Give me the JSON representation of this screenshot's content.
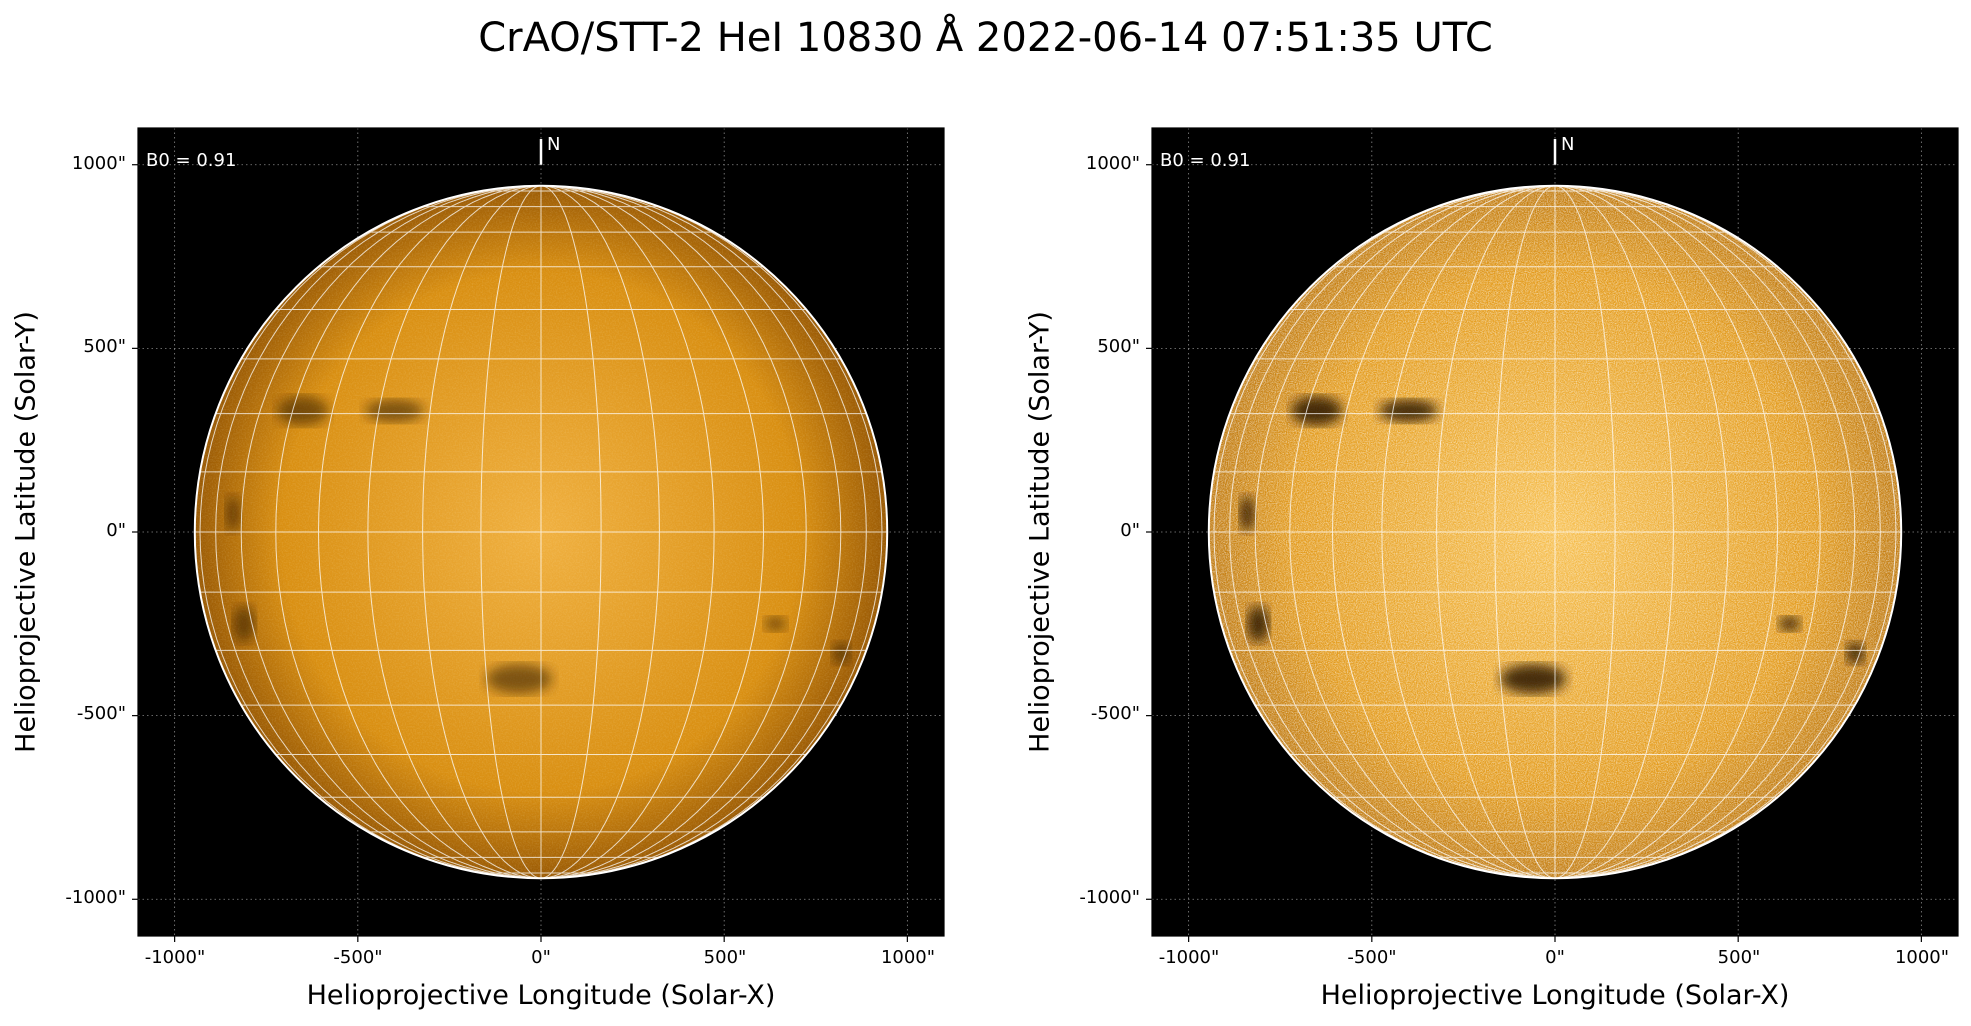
{
  "title": "CrAO/STT-2 HeI 10830 Å 2022-06-14 07:51:35 UTC",
  "colors": {
    "background": "#ffffff",
    "frame_bg": "#000000",
    "disk_center": "#f0b040",
    "disk_mid": "#d98f12",
    "disk_limb": "#9a5a05",
    "grid": "#ffffff",
    "feature_dark": "#2a1502"
  },
  "coordinate_frame": {
    "x_range": [
      -1100,
      1100
    ],
    "y_range": [
      -1100,
      1100
    ],
    "solar_radius_arcsec": 945,
    "grid_spacing_deg": 10
  },
  "panels": [
    {
      "id": "left",
      "annotation": "B0 = 0.91",
      "north_label": "N",
      "xlabel": "Helioprojective Longitude (Solar-X)",
      "ylabel": "Helioprojective Latitude (Solar-Y)",
      "xticks": [
        "-1000\"",
        "-500\"",
        "0\"",
        "500\"",
        "1000\""
      ],
      "yticks": [
        "1000\"",
        "500\"",
        "0\"",
        "-500\"",
        "-1000\""
      ],
      "variant": "smooth"
    },
    {
      "id": "right",
      "annotation": "B0 = 0.91",
      "north_label": "N",
      "xlabel": "Helioprojective Longitude (Solar-X)",
      "ylabel": "Helioprojective Latitude (Solar-Y)",
      "xticks": [
        "-1000\"",
        "-500\"",
        "0\"",
        "500\"",
        "1000\""
      ],
      "yticks": [
        "1000\"",
        "500\"",
        "0\"",
        "-500\"",
        "-1000\""
      ],
      "variant": "enhanced"
    }
  ],
  "tick_values": [
    -1000,
    -500,
    0,
    500,
    1000
  ],
  "dark_features": [
    {
      "x": -650,
      "y": 330,
      "rx": 70,
      "ry": 40
    },
    {
      "x": -400,
      "y": 330,
      "rx": 80,
      "ry": 30
    },
    {
      "x": -840,
      "y": 50,
      "rx": 20,
      "ry": 50
    },
    {
      "x": -810,
      "y": -250,
      "rx": 30,
      "ry": 50
    },
    {
      "x": -60,
      "y": -400,
      "rx": 90,
      "ry": 40
    },
    {
      "x": 640,
      "y": -250,
      "rx": 30,
      "ry": 20
    },
    {
      "x": 820,
      "y": -330,
      "rx": 25,
      "ry": 30
    }
  ]
}
